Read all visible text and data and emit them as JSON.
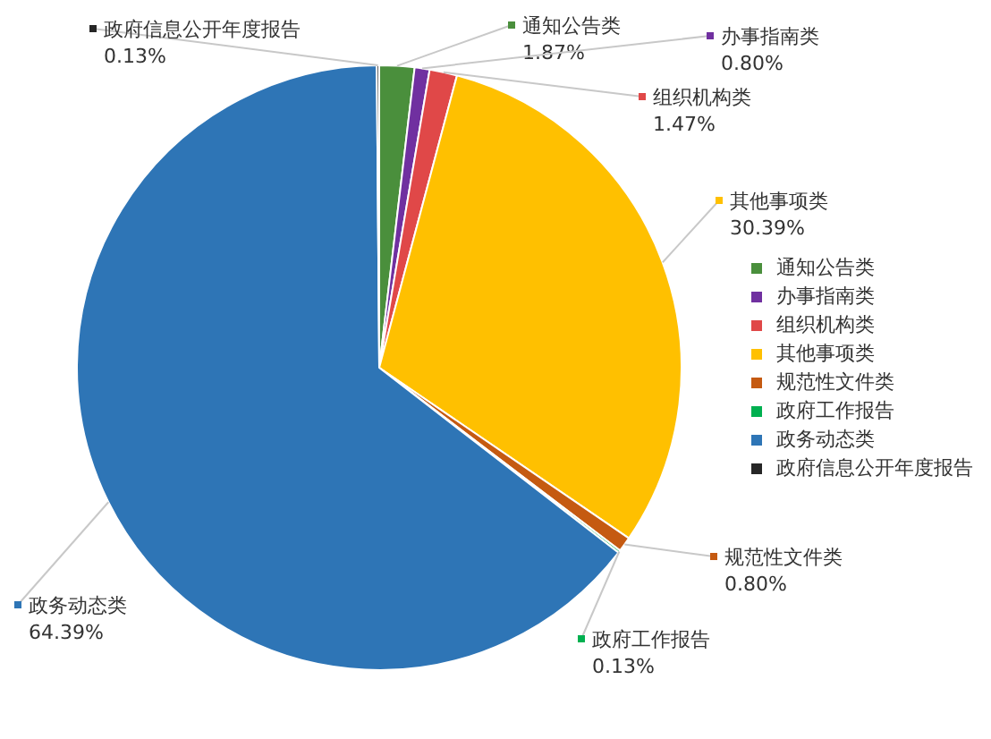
{
  "chart_data": {
    "type": "pie",
    "categories": [
      "通知公告类",
      "办事指南类",
      "组织机构类",
      "其他事项类",
      "规范性文件类",
      "政府工作报告",
      "政务动态类",
      "政府信息公开年度报告"
    ],
    "values": [
      1.87,
      0.8,
      1.47,
      30.39,
      0.8,
      0.13,
      64.39,
      0.13
    ],
    "value_labels": [
      "1.87%",
      "0.80%",
      "1.47%",
      "30.39%",
      "0.80%",
      "0.13%",
      "64.39%",
      "0.13%"
    ],
    "colors": [
      "#4a8f3c",
      "#7030a0",
      "#e04848",
      "#ffc000",
      "#c55a11",
      "#00b050",
      "#2e75b6",
      "#262626"
    ],
    "legend": "right"
  }
}
